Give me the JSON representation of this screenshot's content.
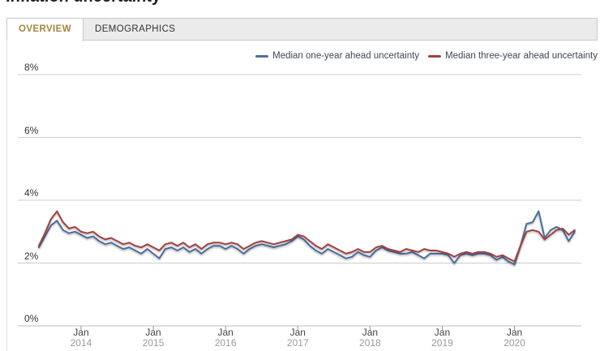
{
  "page": {
    "title": "Inflation uncertainty"
  },
  "tabs": [
    {
      "label": "OVERVIEW",
      "active": true
    },
    {
      "label": "DEMOGRAPHICS",
      "active": false
    }
  ],
  "colors": {
    "active_tab_text": "#a5843c",
    "grid": "#cccccc",
    "axis": "#bbbbbb",
    "tick": "#999999",
    "axis_label": "#333333",
    "year_label": "#999999",
    "legend_text": "#3d4852"
  },
  "chart_data": {
    "type": "line",
    "frequency": "monthly",
    "start": "2013-06",
    "end": "2020-11",
    "grid": true,
    "legend_position": "top-right",
    "ylim": [
      0,
      8
    ],
    "y_ticks": [
      {
        "value": 0,
        "label": "0%"
      },
      {
        "value": 2,
        "label": "2%"
      },
      {
        "value": 4,
        "label": "4%"
      },
      {
        "value": 6,
        "label": "6%"
      },
      {
        "value": 8,
        "label": "8%"
      }
    ],
    "x_ticks": [
      {
        "month": "Jan",
        "year": "2014",
        "index": 7
      },
      {
        "month": "Jan",
        "year": "2015",
        "index": 19
      },
      {
        "month": "Jan",
        "year": "2016",
        "index": 31
      },
      {
        "month": "Jan",
        "year": "2017",
        "index": 43
      },
      {
        "month": "Jan",
        "year": "2018",
        "index": 55
      },
      {
        "month": "Jan",
        "year": "2019",
        "index": 67
      },
      {
        "month": "Jan",
        "year": "2020",
        "index": 79
      }
    ],
    "series": [
      {
        "name": "Median one-year ahead uncertainty",
        "color": "#4c6d9e",
        "values": [
          2.5,
          2.85,
          3.2,
          3.35,
          3.05,
          2.95,
          3.0,
          2.9,
          2.8,
          2.85,
          2.7,
          2.6,
          2.65,
          2.55,
          2.45,
          2.5,
          2.4,
          2.3,
          2.45,
          2.3,
          2.15,
          2.45,
          2.5,
          2.4,
          2.5,
          2.35,
          2.45,
          2.3,
          2.45,
          2.55,
          2.55,
          2.45,
          2.55,
          2.45,
          2.3,
          2.45,
          2.55,
          2.6,
          2.55,
          2.5,
          2.55,
          2.6,
          2.7,
          2.85,
          2.75,
          2.55,
          2.4,
          2.3,
          2.45,
          2.35,
          2.25,
          2.15,
          2.2,
          2.35,
          2.25,
          2.2,
          2.4,
          2.5,
          2.4,
          2.35,
          2.3,
          2.3,
          2.35,
          2.25,
          2.15,
          2.3,
          2.3,
          2.3,
          2.25,
          2.0,
          2.25,
          2.3,
          2.25,
          2.3,
          2.3,
          2.25,
          2.1,
          2.2,
          2.05,
          1.95,
          2.55,
          3.25,
          3.3,
          3.65,
          2.8,
          3.05,
          3.15,
          3.05,
          2.7,
          3.0
        ]
      },
      {
        "name": "Median three-year ahead uncertainty",
        "color": "#a24040",
        "values": [
          2.55,
          2.95,
          3.4,
          3.65,
          3.3,
          3.1,
          3.15,
          3.0,
          2.95,
          3.0,
          2.85,
          2.75,
          2.8,
          2.7,
          2.6,
          2.65,
          2.55,
          2.5,
          2.6,
          2.5,
          2.4,
          2.6,
          2.65,
          2.55,
          2.65,
          2.5,
          2.6,
          2.45,
          2.6,
          2.65,
          2.65,
          2.6,
          2.65,
          2.6,
          2.45,
          2.55,
          2.65,
          2.7,
          2.65,
          2.6,
          2.65,
          2.7,
          2.75,
          2.9,
          2.85,
          2.7,
          2.55,
          2.45,
          2.6,
          2.5,
          2.4,
          2.3,
          2.35,
          2.45,
          2.35,
          2.35,
          2.5,
          2.55,
          2.45,
          2.4,
          2.35,
          2.45,
          2.4,
          2.35,
          2.45,
          2.4,
          2.4,
          2.35,
          2.3,
          2.2,
          2.3,
          2.35,
          2.3,
          2.35,
          2.35,
          2.3,
          2.2,
          2.25,
          2.15,
          2.05,
          2.55,
          3.0,
          3.05,
          3.0,
          2.75,
          2.9,
          3.05,
          3.1,
          2.9,
          3.05
        ]
      }
    ]
  }
}
